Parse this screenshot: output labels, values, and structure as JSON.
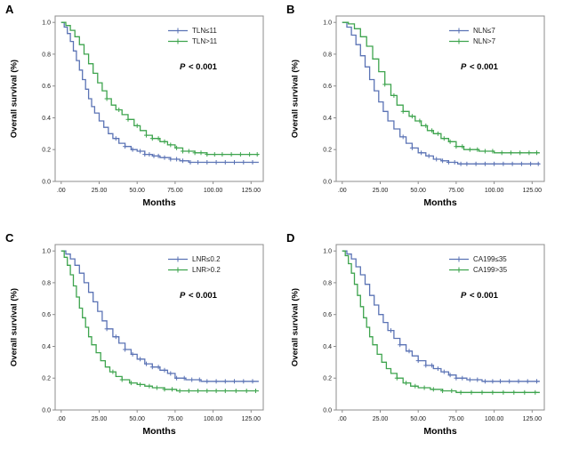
{
  "colors": {
    "blue": "#5b73b5",
    "green": "#3ea44e",
    "axis": "#8c8c8c",
    "tick_text": "#222222"
  },
  "chart_data": [
    {
      "type": "line",
      "panel": "A",
      "xlabel": "Months",
      "ylabel": "Overall survival (%)",
      "p_label": "P",
      "p_text": " < 0.001",
      "xlim": [
        -4,
        133
      ],
      "ylim": [
        0,
        1.04
      ],
      "xticks": [
        0,
        25,
        50,
        75,
        100,
        125
      ],
      "xtick_labels": [
        ".00",
        "25.00",
        "50.00",
        "75.00",
        "100.00",
        "125.00"
      ],
      "yticks": [
        0.0,
        0.2,
        0.4,
        0.6,
        0.8,
        1.0
      ],
      "ytick_labels": [
        "0.0",
        "0.2",
        "0.4",
        "0.6",
        "0.8",
        "1.0"
      ],
      "series": [
        {
          "name": "TLN≤11",
          "color": "#5b73b5",
          "step": true,
          "points": [
            [
              0,
              1.0
            ],
            [
              2,
              0.97
            ],
            [
              4,
              0.93
            ],
            [
              6,
              0.88
            ],
            [
              8,
              0.82
            ],
            [
              10,
              0.76
            ],
            [
              12,
              0.7
            ],
            [
              14,
              0.64
            ],
            [
              16,
              0.58
            ],
            [
              18,
              0.52
            ],
            [
              20,
              0.47
            ],
            [
              22,
              0.43
            ],
            [
              25,
              0.38
            ],
            [
              28,
              0.34
            ],
            [
              31,
              0.3
            ],
            [
              34,
              0.27
            ],
            [
              38,
              0.24
            ],
            [
              42,
              0.22
            ],
            [
              46,
              0.2
            ],
            [
              50,
              0.19
            ],
            [
              55,
              0.17
            ],
            [
              60,
              0.16
            ],
            [
              65,
              0.15
            ],
            [
              72,
              0.14
            ],
            [
              78,
              0.13
            ],
            [
              84,
              0.12
            ],
            [
              130,
              0.12
            ]
          ],
          "censors": [
            36,
            42,
            47,
            52,
            55,
            58,
            61,
            64,
            68,
            72,
            76,
            80,
            85,
            90,
            96,
            102,
            108,
            114,
            120,
            126
          ]
        },
        {
          "name": "TLN>11",
          "color": "#3ea44e",
          "step": true,
          "points": [
            [
              0,
              1.0
            ],
            [
              3,
              0.98
            ],
            [
              6,
              0.95
            ],
            [
              9,
              0.91
            ],
            [
              12,
              0.86
            ],
            [
              15,
              0.8
            ],
            [
              18,
              0.74
            ],
            [
              21,
              0.68
            ],
            [
              24,
              0.62
            ],
            [
              27,
              0.57
            ],
            [
              30,
              0.52
            ],
            [
              33,
              0.48
            ],
            [
              36,
              0.45
            ],
            [
              40,
              0.42
            ],
            [
              44,
              0.39
            ],
            [
              48,
              0.35
            ],
            [
              52,
              0.32
            ],
            [
              56,
              0.29
            ],
            [
              60,
              0.27
            ],
            [
              65,
              0.25
            ],
            [
              70,
              0.23
            ],
            [
              75,
              0.21
            ],
            [
              80,
              0.19
            ],
            [
              88,
              0.18
            ],
            [
              96,
              0.17
            ],
            [
              130,
              0.17
            ]
          ],
          "censors": [
            30,
            38,
            44,
            50,
            56,
            60,
            64,
            68,
            72,
            76,
            80,
            84,
            88,
            92,
            96,
            101,
            106,
            112,
            118,
            124,
            129
          ]
        }
      ]
    },
    {
      "type": "line",
      "panel": "B",
      "xlabel": "Months",
      "ylabel": "Overall survival (%)",
      "p_label": "P",
      "p_text": " < 0.001",
      "xlim": [
        -4,
        133
      ],
      "ylim": [
        0,
        1.04
      ],
      "xticks": [
        0,
        25,
        50,
        75,
        100,
        125
      ],
      "xtick_labels": [
        ".00",
        "25.00",
        "50.00",
        "75.00",
        "100.00",
        "125.00"
      ],
      "yticks": [
        0.0,
        0.2,
        0.4,
        0.6,
        0.8,
        1.0
      ],
      "ytick_labels": [
        "0.0",
        "0.2",
        "0.4",
        "0.6",
        "0.8",
        "1.0"
      ],
      "series": [
        {
          "name": "NLN≤7",
          "color": "#5b73b5",
          "step": true,
          "points": [
            [
              0,
              1.0
            ],
            [
              3,
              0.97
            ],
            [
              6,
              0.92
            ],
            [
              9,
              0.86
            ],
            [
              12,
              0.79
            ],
            [
              15,
              0.72
            ],
            [
              18,
              0.64
            ],
            [
              21,
              0.57
            ],
            [
              24,
              0.5
            ],
            [
              27,
              0.44
            ],
            [
              30,
              0.38
            ],
            [
              34,
              0.33
            ],
            [
              38,
              0.28
            ],
            [
              42,
              0.24
            ],
            [
              46,
              0.21
            ],
            [
              50,
              0.18
            ],
            [
              55,
              0.16
            ],
            [
              60,
              0.14
            ],
            [
              65,
              0.13
            ],
            [
              70,
              0.12
            ],
            [
              76,
              0.11
            ],
            [
              130,
              0.11
            ]
          ],
          "censors": [
            40,
            46,
            52,
            57,
            62,
            66,
            70,
            74,
            78,
            82,
            88,
            94,
            100,
            106,
            112,
            118,
            124,
            129
          ]
        },
        {
          "name": "NLN>7",
          "color": "#3ea44e",
          "step": true,
          "points": [
            [
              0,
              1.0
            ],
            [
              4,
              0.99
            ],
            [
              8,
              0.96
            ],
            [
              12,
              0.91
            ],
            [
              16,
              0.85
            ],
            [
              20,
              0.77
            ],
            [
              24,
              0.69
            ],
            [
              28,
              0.61
            ],
            [
              32,
              0.54
            ],
            [
              36,
              0.48
            ],
            [
              40,
              0.44
            ],
            [
              44,
              0.41
            ],
            [
              48,
              0.38
            ],
            [
              52,
              0.35
            ],
            [
              56,
              0.32
            ],
            [
              60,
              0.3
            ],
            [
              65,
              0.27
            ],
            [
              70,
              0.25
            ],
            [
              75,
              0.22
            ],
            [
              80,
              0.2
            ],
            [
              90,
              0.19
            ],
            [
              100,
              0.18
            ],
            [
              130,
              0.18
            ]
          ],
          "censors": [
            28,
            34,
            40,
            46,
            51,
            55,
            59,
            63,
            67,
            71,
            75,
            79,
            84,
            89,
            94,
            99,
            105,
            111,
            117,
            123,
            128
          ]
        }
      ]
    },
    {
      "type": "line",
      "panel": "C",
      "xlabel": "Months",
      "ylabel": "Overall survival (%)",
      "p_label": "P",
      "p_text": " < 0.001",
      "xlim": [
        -4,
        133
      ],
      "ylim": [
        0,
        1.04
      ],
      "xticks": [
        0,
        25,
        50,
        75,
        100,
        125
      ],
      "xtick_labels": [
        ".00",
        "25.00",
        "50.00",
        "75.00",
        "100.00",
        "125.00"
      ],
      "yticks": [
        0.0,
        0.2,
        0.4,
        0.6,
        0.8,
        1.0
      ],
      "ytick_labels": [
        "0.0",
        "0.2",
        "0.4",
        "0.6",
        "0.8",
        "1.0"
      ],
      "series": [
        {
          "name": "LNR≤0.2",
          "color": "#5b73b5",
          "step": true,
          "points": [
            [
              0,
              1.0
            ],
            [
              3,
              0.98
            ],
            [
              6,
              0.95
            ],
            [
              9,
              0.91
            ],
            [
              12,
              0.86
            ],
            [
              15,
              0.8
            ],
            [
              18,
              0.74
            ],
            [
              21,
              0.68
            ],
            [
              24,
              0.62
            ],
            [
              27,
              0.56
            ],
            [
              30,
              0.51
            ],
            [
              34,
              0.46
            ],
            [
              38,
              0.42
            ],
            [
              42,
              0.38
            ],
            [
              46,
              0.35
            ],
            [
              50,
              0.32
            ],
            [
              55,
              0.29
            ],
            [
              60,
              0.27
            ],
            [
              65,
              0.25
            ],
            [
              70,
              0.23
            ],
            [
              75,
              0.2
            ],
            [
              82,
              0.19
            ],
            [
              92,
              0.18
            ],
            [
              130,
              0.18
            ]
          ],
          "censors": [
            30,
            36,
            42,
            47,
            52,
            56,
            60,
            64,
            68,
            72,
            76,
            81,
            86,
            91,
            96,
            102,
            108,
            114,
            120,
            126
          ]
        },
        {
          "name": "LNR>0.2",
          "color": "#3ea44e",
          "step": true,
          "points": [
            [
              0,
              1.0
            ],
            [
              2,
              0.96
            ],
            [
              4,
              0.91
            ],
            [
              6,
              0.85
            ],
            [
              8,
              0.78
            ],
            [
              10,
              0.71
            ],
            [
              12,
              0.64
            ],
            [
              14,
              0.58
            ],
            [
              16,
              0.52
            ],
            [
              18,
              0.46
            ],
            [
              20,
              0.41
            ],
            [
              23,
              0.36
            ],
            [
              26,
              0.31
            ],
            [
              29,
              0.27
            ],
            [
              32,
              0.24
            ],
            [
              36,
              0.21
            ],
            [
              40,
              0.19
            ],
            [
              45,
              0.17
            ],
            [
              50,
              0.16
            ],
            [
              55,
              0.15
            ],
            [
              60,
              0.14
            ],
            [
              68,
              0.13
            ],
            [
              76,
              0.12
            ],
            [
              130,
              0.12
            ]
          ],
          "censors": [
            34,
            40,
            46,
            52,
            58,
            63,
            68,
            73,
            78,
            84,
            90,
            96,
            102,
            108,
            115,
            122,
            128
          ]
        }
      ]
    },
    {
      "type": "line",
      "panel": "D",
      "xlabel": "Months",
      "ylabel": "Overall survival (%)",
      "p_label": "P",
      "p_text": " < 0.001",
      "xlim": [
        -4,
        133
      ],
      "ylim": [
        0,
        1.04
      ],
      "xticks": [
        0,
        25,
        50,
        75,
        100,
        125
      ],
      "xtick_labels": [
        ".00",
        "25.00",
        "50.00",
        "75.00",
        "100.00",
        "125.00"
      ],
      "yticks": [
        0.0,
        0.2,
        0.4,
        0.6,
        0.8,
        1.0
      ],
      "ytick_labels": [
        "0.0",
        "0.2",
        "0.4",
        "0.6",
        "0.8",
        "1.0"
      ],
      "series": [
        {
          "name": "CA199≤35",
          "color": "#5b73b5",
          "step": true,
          "points": [
            [
              0,
              1.0
            ],
            [
              3,
              0.98
            ],
            [
              6,
              0.95
            ],
            [
              9,
              0.9
            ],
            [
              12,
              0.85
            ],
            [
              15,
              0.79
            ],
            [
              18,
              0.72
            ],
            [
              21,
              0.66
            ],
            [
              24,
              0.6
            ],
            [
              27,
              0.55
            ],
            [
              30,
              0.5
            ],
            [
              34,
              0.45
            ],
            [
              38,
              0.41
            ],
            [
              42,
              0.37
            ],
            [
              46,
              0.34
            ],
            [
              50,
              0.31
            ],
            [
              55,
              0.28
            ],
            [
              60,
              0.26
            ],
            [
              65,
              0.24
            ],
            [
              70,
              0.22
            ],
            [
              75,
              0.2
            ],
            [
              82,
              0.19
            ],
            [
              92,
              0.18
            ],
            [
              130,
              0.18
            ]
          ],
          "censors": [
            32,
            38,
            44,
            50,
            55,
            59,
            63,
            67,
            71,
            75,
            79,
            84,
            89,
            94,
            99,
            104,
            110,
            116,
            122,
            128
          ]
        },
        {
          "name": "CA199>35",
          "color": "#3ea44e",
          "step": true,
          "points": [
            [
              0,
              1.0
            ],
            [
              2,
              0.97
            ],
            [
              4,
              0.92
            ],
            [
              6,
              0.86
            ],
            [
              8,
              0.79
            ],
            [
              10,
              0.72
            ],
            [
              12,
              0.65
            ],
            [
              14,
              0.58
            ],
            [
              16,
              0.52
            ],
            [
              18,
              0.46
            ],
            [
              20,
              0.41
            ],
            [
              23,
              0.35
            ],
            [
              26,
              0.3
            ],
            [
              29,
              0.26
            ],
            [
              32,
              0.23
            ],
            [
              36,
              0.2
            ],
            [
              40,
              0.17
            ],
            [
              45,
              0.15
            ],
            [
              50,
              0.14
            ],
            [
              58,
              0.13
            ],
            [
              66,
              0.12
            ],
            [
              75,
              0.11
            ],
            [
              130,
              0.11
            ]
          ],
          "censors": [
            36,
            42,
            48,
            54,
            60,
            66,
            72,
            78,
            85,
            92,
            99,
            106,
            113,
            120,
            127
          ]
        }
      ]
    }
  ]
}
